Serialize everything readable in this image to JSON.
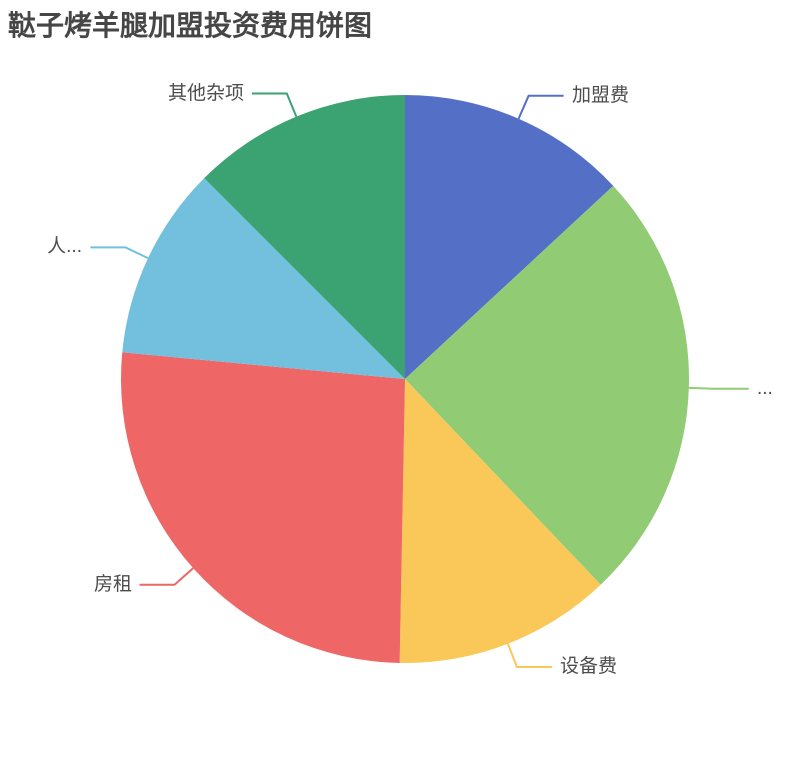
{
  "chart_data": {
    "type": "pie",
    "title": "鞑子烤羊腿加盟投资费用饼图",
    "legend": "none",
    "label_position": "outside",
    "background_color": "#ffffff",
    "title_color": "#464646",
    "label_color": "#4d4d4d",
    "values_are_percent_estimated_from_angles": true,
    "start_angle": "12-o-clock, clockwise",
    "slices": [
      {
        "label": "加盟费",
        "value": 13.1,
        "color": "#5470c6"
      },
      {
        "label": "...",
        "value": 24.8,
        "color": "#91cc75"
      },
      {
        "label": "设备费",
        "value": 12.4,
        "color": "#fac858"
      },
      {
        "label": "房租",
        "value": 26.2,
        "color": "#ee6666"
      },
      {
        "label": "人...",
        "value": 11.0,
        "color": "#73c0de"
      },
      {
        "label": "其他杂项",
        "value": 12.5,
        "color": "#3ba272"
      }
    ]
  }
}
